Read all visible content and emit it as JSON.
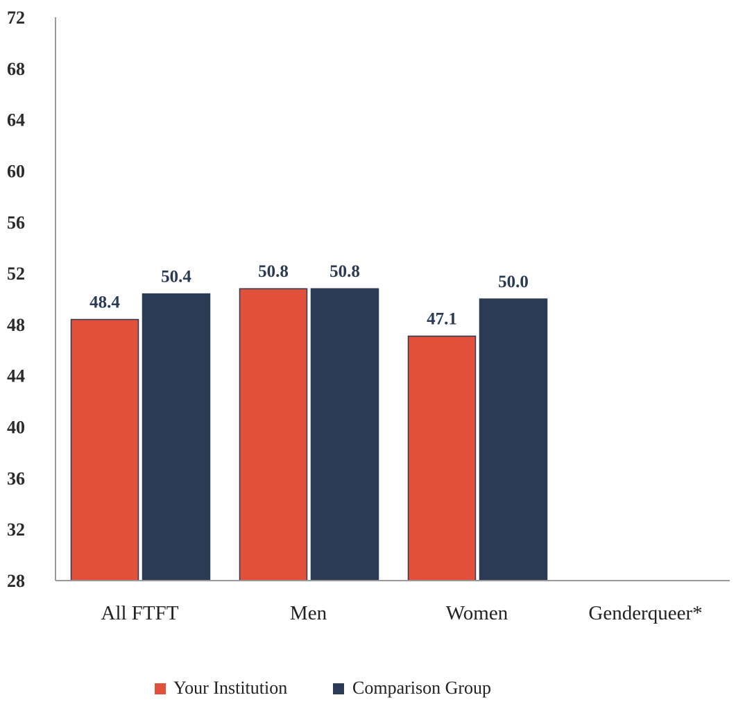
{
  "chart_data": {
    "type": "bar",
    "categories": [
      "All FTFT",
      "Men",
      "Women",
      "Genderqueer*"
    ],
    "series": [
      {
        "name": "Your Institution",
        "values": [
          48.4,
          50.8,
          47.1,
          null
        ],
        "color": "#e0503a"
      },
      {
        "name": "Comparison Group",
        "values": [
          50.4,
          50.8,
          50.0,
          null
        ],
        "color": "#2b3a55"
      }
    ],
    "ylim": [
      28,
      72
    ],
    "yticks": [
      "28",
      "32",
      "36",
      "40",
      "44",
      "48",
      "52",
      "56",
      "60",
      "64",
      "68",
      "72"
    ],
    "data_labels": [
      [
        "48.4",
        "50.8",
        "47.1",
        ""
      ],
      [
        "50.4",
        "50.8",
        "50.0",
        ""
      ]
    ],
    "grid": false,
    "legend_position": "bottom-center"
  }
}
